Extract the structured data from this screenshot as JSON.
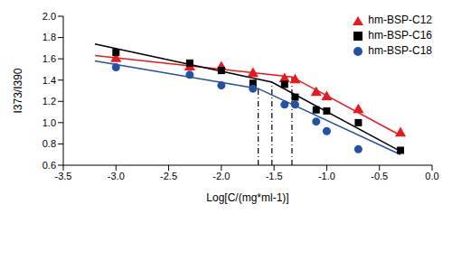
{
  "chart_data": {
    "type": "scatter",
    "x_label": "Log[C/(mg*ml-1)]",
    "y_label": "I373/I390",
    "xlim": [
      -3.5,
      0.0
    ],
    "xticks": [
      -3.5,
      {
        "value": -3.0,
        "label": "-3.0"
      },
      -2.5,
      {
        "value": -2.0,
        "label": "-2.0"
      },
      -1.5,
      {
        "value": -1.0,
        "label": "-1.0"
      },
      -0.5,
      {
        "value": 0.0,
        "label": "0.0"
      }
    ],
    "ylim": [
      0.6,
      2.0
    ],
    "yticks": [
      0.6,
      0.8,
      {
        "value": 1.0,
        "label": "1.0"
      },
      1.2,
      1.4,
      1.6,
      1.8,
      {
        "value": 2.0,
        "label": "2.0"
      }
    ],
    "grid": false,
    "legend": "upper right",
    "series": [
      {
        "name": "hm-BSP-C12",
        "color": "#e8191f",
        "marker": "triangle",
        "x": [
          -3.0,
          -2.3,
          -2.0,
          -1.7,
          -1.4,
          -1.3,
          -1.1,
          -1.0,
          -0.7,
          -0.3
        ],
        "values": [
          1.6,
          1.52,
          1.52,
          1.46,
          1.41,
          1.4,
          1.28,
          1.24,
          1.12,
          0.9
        ],
        "fit": {
          "x": [
            -3.2,
            -1.33,
            -0.3
          ],
          "values": [
            1.63,
            1.43,
            0.88
          ]
        }
      },
      {
        "name": "hm-BSP-C16",
        "color": "#000000",
        "marker": "square",
        "x": [
          -3.0,
          -2.3,
          -2.0,
          -1.7,
          -1.4,
          -1.3,
          -1.1,
          -1.0,
          -0.7,
          -0.3
        ],
        "values": [
          1.66,
          1.56,
          1.49,
          1.37,
          1.36,
          1.24,
          1.12,
          1.11,
          1.0,
          0.74
        ],
        "fit": {
          "x": [
            -3.2,
            -1.52,
            -0.3
          ],
          "values": [
            1.74,
            1.38,
            0.73
          ]
        }
      },
      {
        "name": "hm-BSP-C18",
        "color": "#2450a8",
        "marker": "circle",
        "x": [
          -3.0,
          -2.3,
          -2.0,
          -1.7,
          -1.4,
          -1.3,
          -1.1,
          -1.0,
          -0.7
        ],
        "values": [
          1.52,
          1.45,
          1.35,
          1.32,
          1.17,
          1.17,
          1.01,
          0.92,
          0.75
        ],
        "fit": {
          "x": [
            -3.2,
            -1.65,
            -0.3
          ],
          "values": [
            1.58,
            1.32,
            0.7
          ]
        }
      }
    ]
  }
}
